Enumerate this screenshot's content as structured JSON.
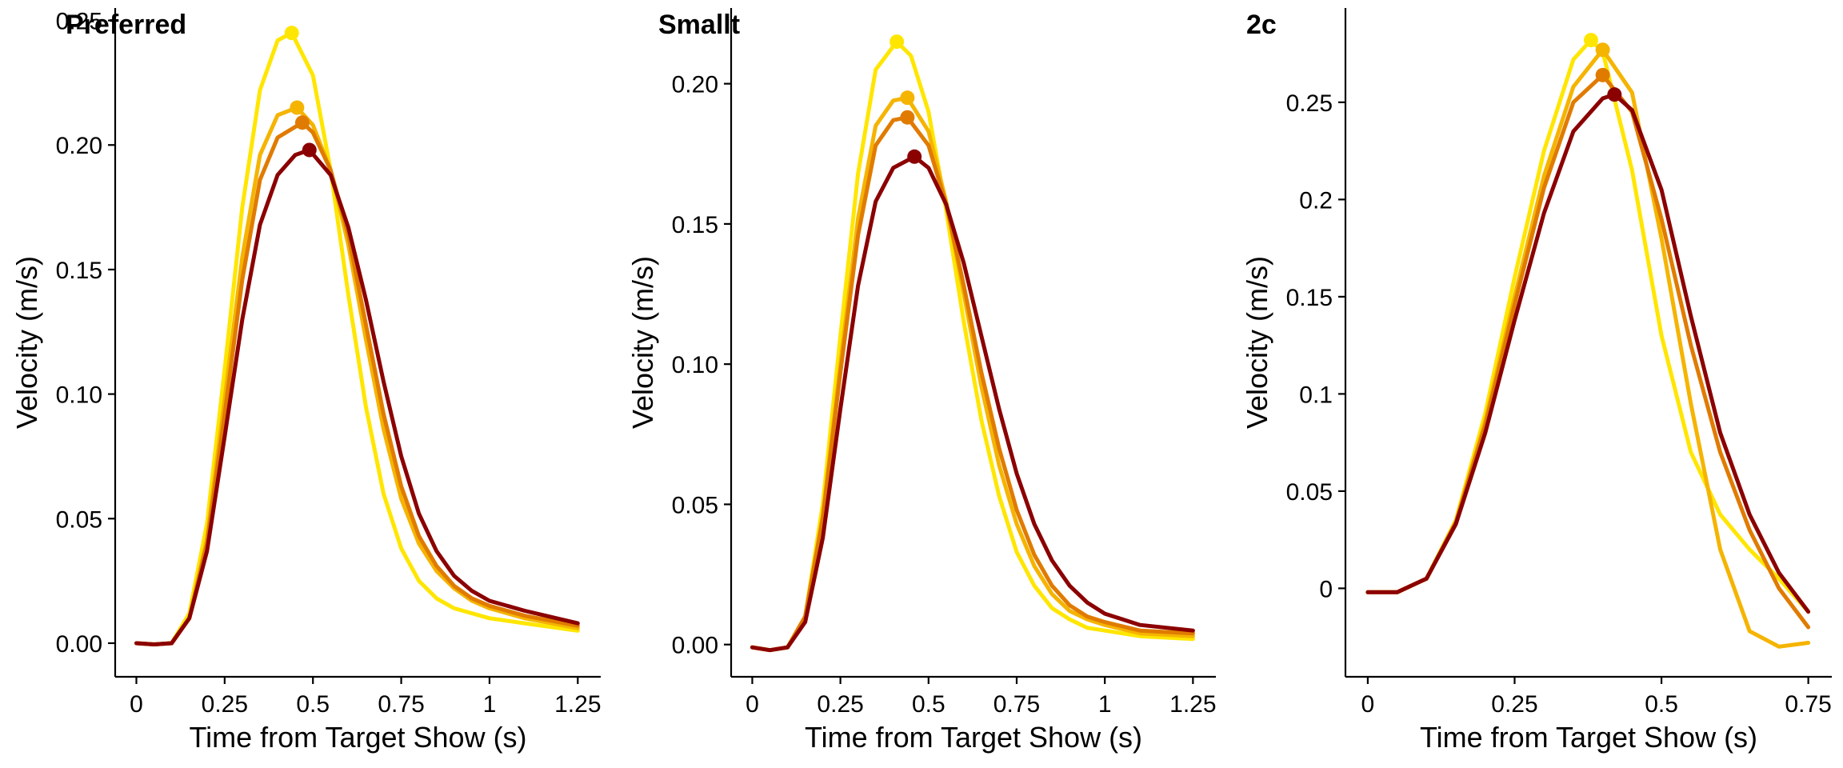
{
  "figure": {
    "xlabel": "Time from Target Show (s)",
    "ylabel": "Velocity (m/s)"
  },
  "colors": {
    "series": [
      "#FFE600",
      "#F5B400",
      "#E07B00",
      "#8B0000"
    ]
  },
  "chart_data": [
    {
      "type": "line",
      "title": "Preferred",
      "xlabel": "Time from Target Show (s)",
      "ylabel": "Velocity (m/s)",
      "xlim": [
        -0.06,
        1.315
      ],
      "ylim": [
        -0.0135,
        0.255
      ],
      "xticks": [
        0,
        0.25,
        0.5,
        0.75,
        1,
        1.25
      ],
      "xtick_labels": [
        "0",
        "0.25",
        "0.5",
        "0.75",
        "1",
        "1.25"
      ],
      "yticks": [
        0,
        0.05,
        0.1,
        0.15,
        0.2,
        0.25
      ],
      "ytick_labels": [
        "0.00",
        "0.05",
        "0.10",
        "0.15",
        "0.20",
        "0.25"
      ],
      "grid": false,
      "series": [
        {
          "x": [
            0,
            0.05,
            0.1,
            0.15,
            0.2,
            0.25,
            0.3,
            0.35,
            0.4,
            0.44,
            0.5,
            0.55,
            0.6,
            0.65,
            0.7,
            0.75,
            0.8,
            0.85,
            0.9,
            0.95,
            1.0,
            1.1,
            1.25
          ],
          "y": [
            0,
            -0.0005,
            0,
            0.012,
            0.048,
            0.11,
            0.175,
            0.222,
            0.242,
            0.245,
            0.228,
            0.19,
            0.14,
            0.095,
            0.06,
            0.038,
            0.025,
            0.018,
            0.014,
            0.012,
            0.01,
            0.008,
            0.005
          ],
          "peak": [
            0.44,
            0.245
          ]
        },
        {
          "x": [
            0,
            0.05,
            0.1,
            0.15,
            0.2,
            0.25,
            0.3,
            0.35,
            0.4,
            0.455,
            0.5,
            0.55,
            0.6,
            0.65,
            0.7,
            0.75,
            0.8,
            0.85,
            0.9,
            0.95,
            1.0,
            1.1,
            1.25
          ],
          "y": [
            0,
            -0.0005,
            0,
            0.01,
            0.042,
            0.098,
            0.155,
            0.196,
            0.212,
            0.215,
            0.208,
            0.19,
            0.16,
            0.122,
            0.086,
            0.058,
            0.04,
            0.029,
            0.022,
            0.017,
            0.014,
            0.01,
            0.006
          ],
          "peak": [
            0.455,
            0.215
          ]
        },
        {
          "x": [
            0,
            0.05,
            0.1,
            0.15,
            0.2,
            0.25,
            0.3,
            0.35,
            0.4,
            0.47,
            0.5,
            0.55,
            0.6,
            0.65,
            0.7,
            0.75,
            0.8,
            0.85,
            0.9,
            0.95,
            1.0,
            1.1,
            1.25
          ],
          "y": [
            0,
            -0.0005,
            0,
            0.01,
            0.04,
            0.092,
            0.146,
            0.186,
            0.203,
            0.209,
            0.205,
            0.19,
            0.164,
            0.128,
            0.092,
            0.063,
            0.043,
            0.031,
            0.023,
            0.018,
            0.015,
            0.011,
            0.007
          ],
          "peak": [
            0.47,
            0.209
          ]
        },
        {
          "x": [
            0,
            0.05,
            0.1,
            0.15,
            0.2,
            0.25,
            0.3,
            0.35,
            0.4,
            0.45,
            0.49,
            0.55,
            0.6,
            0.65,
            0.7,
            0.75,
            0.8,
            0.85,
            0.9,
            0.95,
            1.0,
            1.1,
            1.25
          ],
          "y": [
            0,
            -0.0005,
            0,
            0.01,
            0.037,
            0.083,
            0.13,
            0.168,
            0.188,
            0.196,
            0.198,
            0.188,
            0.167,
            0.138,
            0.105,
            0.075,
            0.052,
            0.037,
            0.027,
            0.021,
            0.017,
            0.013,
            0.008
          ],
          "peak": [
            0.49,
            0.198
          ]
        }
      ]
    },
    {
      "type": "line",
      "title": "Smallt",
      "xlabel": "Time from Target Show (s)",
      "ylabel": "Velocity (m/s)",
      "xlim": [
        -0.06,
        1.315
      ],
      "ylim": [
        -0.0115,
        0.227
      ],
      "xticks": [
        0,
        0.25,
        0.5,
        0.75,
        1,
        1.25
      ],
      "xtick_labels": [
        "0",
        "0.25",
        "0.5",
        "0.75",
        "1",
        "1.25"
      ],
      "yticks": [
        0,
        0.05,
        0.1,
        0.15,
        0.2
      ],
      "ytick_labels": [
        "0.00",
        "0.05",
        "0.10",
        "0.15",
        "0.20"
      ],
      "grid": false,
      "series": [
        {
          "x": [
            0,
            0.05,
            0.1,
            0.15,
            0.2,
            0.25,
            0.3,
            0.35,
            0.41,
            0.45,
            0.5,
            0.55,
            0.6,
            0.65,
            0.7,
            0.75,
            0.8,
            0.85,
            0.9,
            0.95,
            1.0,
            1.1,
            1.25
          ],
          "y": [
            -0.001,
            -0.002,
            -0.001,
            0.01,
            0.05,
            0.11,
            0.168,
            0.205,
            0.215,
            0.21,
            0.19,
            0.155,
            0.115,
            0.08,
            0.053,
            0.033,
            0.021,
            0.013,
            0.009,
            0.006,
            0.005,
            0.003,
            0.002
          ],
          "peak": [
            0.41,
            0.215
          ]
        },
        {
          "x": [
            0,
            0.05,
            0.1,
            0.15,
            0.2,
            0.25,
            0.3,
            0.35,
            0.4,
            0.44,
            0.5,
            0.55,
            0.6,
            0.65,
            0.7,
            0.75,
            0.8,
            0.85,
            0.9,
            0.95,
            1.0,
            1.1,
            1.25
          ],
          "y": [
            -0.001,
            -0.002,
            -0.001,
            0.01,
            0.046,
            0.1,
            0.152,
            0.185,
            0.194,
            0.195,
            0.183,
            0.158,
            0.125,
            0.092,
            0.064,
            0.043,
            0.028,
            0.018,
            0.012,
            0.009,
            0.007,
            0.004,
            0.003
          ],
          "peak": [
            0.44,
            0.195
          ]
        },
        {
          "x": [
            0,
            0.05,
            0.1,
            0.15,
            0.2,
            0.25,
            0.3,
            0.35,
            0.4,
            0.44,
            0.5,
            0.55,
            0.6,
            0.65,
            0.7,
            0.75,
            0.8,
            0.85,
            0.9,
            0.95,
            1.0,
            1.1,
            1.25
          ],
          "y": [
            -0.001,
            -0.002,
            -0.001,
            0.01,
            0.045,
            0.097,
            0.146,
            0.178,
            0.187,
            0.188,
            0.178,
            0.157,
            0.128,
            0.097,
            0.07,
            0.048,
            0.032,
            0.021,
            0.014,
            0.01,
            0.008,
            0.005,
            0.004
          ],
          "peak": [
            0.44,
            0.188
          ]
        },
        {
          "x": [
            0,
            0.05,
            0.1,
            0.15,
            0.2,
            0.25,
            0.3,
            0.35,
            0.4,
            0.46,
            0.5,
            0.55,
            0.6,
            0.65,
            0.7,
            0.75,
            0.8,
            0.85,
            0.9,
            0.95,
            1.0,
            1.1,
            1.25
          ],
          "y": [
            -0.001,
            -0.002,
            -0.001,
            0.008,
            0.038,
            0.084,
            0.128,
            0.158,
            0.17,
            0.174,
            0.17,
            0.157,
            0.136,
            0.11,
            0.084,
            0.061,
            0.043,
            0.03,
            0.021,
            0.015,
            0.011,
            0.007,
            0.005
          ],
          "peak": [
            0.46,
            0.174
          ]
        }
      ]
    },
    {
      "type": "line",
      "title": "2c",
      "xlabel": "Time from Target Show (s)",
      "ylabel": "Velocity (m/s)",
      "xlim": [
        -0.038,
        0.79
      ],
      "ylim": [
        -0.0455,
        0.2985
      ],
      "xticks": [
        0,
        0.25,
        0.5,
        0.75
      ],
      "xtick_labels": [
        "0",
        "0.25",
        "0.5",
        "0.75"
      ],
      "yticks": [
        0,
        0.05,
        0.1,
        0.15,
        0.2,
        0.25
      ],
      "ytick_labels": [
        "0",
        "0.05",
        "0.1",
        "0.15",
        "0.2",
        "0.25"
      ],
      "grid": false,
      "series": [
        {
          "x": [
            0,
            0.05,
            0.1,
            0.15,
            0.2,
            0.25,
            0.3,
            0.35,
            0.38,
            0.4,
            0.45,
            0.5,
            0.55,
            0.6,
            0.65,
            0.7,
            0.75
          ],
          "y": [
            -0.002,
            -0.002,
            0.005,
            0.035,
            0.09,
            0.16,
            0.225,
            0.272,
            0.282,
            0.276,
            0.215,
            0.13,
            0.07,
            0.038,
            0.02,
            0.005,
            -0.012
          ],
          "peak": [
            0.38,
            0.282
          ]
        },
        {
          "x": [
            0,
            0.05,
            0.1,
            0.15,
            0.2,
            0.25,
            0.3,
            0.35,
            0.4,
            0.45,
            0.5,
            0.55,
            0.6,
            0.65,
            0.7,
            0.75
          ],
          "y": [
            -0.002,
            -0.002,
            0.005,
            0.034,
            0.086,
            0.15,
            0.212,
            0.258,
            0.277,
            0.255,
            0.18,
            0.095,
            0.02,
            -0.022,
            -0.03,
            -0.028
          ],
          "peak": [
            0.4,
            0.277
          ]
        },
        {
          "x": [
            0,
            0.05,
            0.1,
            0.15,
            0.2,
            0.25,
            0.3,
            0.35,
            0.4,
            0.45,
            0.5,
            0.55,
            0.6,
            0.65,
            0.7,
            0.75
          ],
          "y": [
            -0.002,
            -0.002,
            0.005,
            0.034,
            0.084,
            0.146,
            0.206,
            0.25,
            0.264,
            0.245,
            0.19,
            0.125,
            0.07,
            0.03,
            0.0,
            -0.02
          ],
          "peak": [
            0.4,
            0.264
          ]
        },
        {
          "x": [
            0,
            0.05,
            0.1,
            0.15,
            0.2,
            0.25,
            0.3,
            0.35,
            0.4,
            0.42,
            0.45,
            0.5,
            0.55,
            0.6,
            0.65,
            0.7,
            0.75
          ],
          "y": [
            -0.002,
            -0.002,
            0.005,
            0.033,
            0.08,
            0.138,
            0.193,
            0.235,
            0.252,
            0.254,
            0.246,
            0.205,
            0.14,
            0.08,
            0.038,
            0.008,
            -0.012
          ],
          "peak": [
            0.42,
            0.254
          ]
        }
      ]
    }
  ]
}
